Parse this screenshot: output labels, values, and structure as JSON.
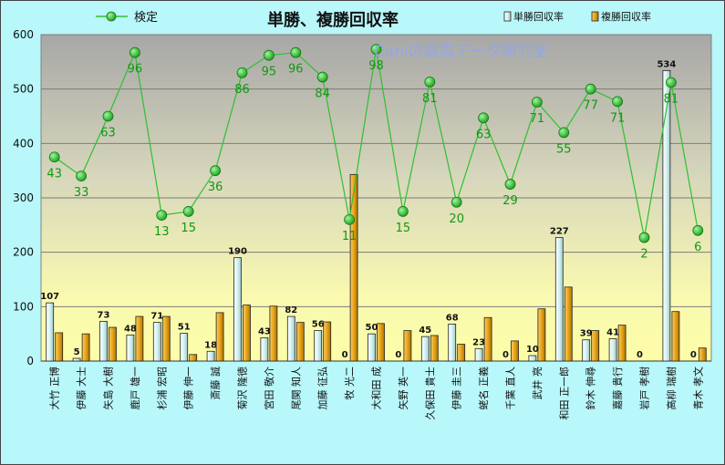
{
  "chart_data": {
    "type": "bar",
    "title": "単勝、複勝回収率",
    "watermark": "Caniの競馬データ研究室",
    "ylim": [
      0,
      600
    ],
    "yticks": [
      0,
      100,
      200,
      300,
      400,
      500,
      600
    ],
    "grid": true,
    "legend_position": "top",
    "categories": [
      "大竹 正博",
      "伊藤 大士",
      "矢島 大樹",
      "鹿戸 雄一",
      "杉浦 宏昭",
      "伊藤 伸一",
      "斎藤 誠",
      "菊沢 隆徳",
      "宮田 敬介",
      "尾関 知人",
      "加藤 征弘",
      "牧 光二",
      "大和田 成",
      "矢野 英一",
      "久保田 貴士",
      "伊藤 圭三",
      "蛯名 正義",
      "千葉 直人",
      "武井 亮",
      "和田 正一郎",
      "鈴木 伸尋",
      "嘉藤 貴行",
      "岩戸 孝樹",
      "高柳 瑞樹",
      "青木 孝文"
    ],
    "series": [
      {
        "name": "単勝回収率",
        "type": "bar",
        "color": "#d4f0f0",
        "values": [
          107,
          5,
          73,
          48,
          71,
          51,
          18,
          190,
          43,
          82,
          56,
          0,
          50,
          0,
          45,
          68,
          23,
          0,
          10,
          227,
          39,
          41,
          0,
          534,
          0
        ],
        "labels_shown": true
      },
      {
        "name": "複勝回収率",
        "type": "bar",
        "color": "#e8a317",
        "values": [
          52,
          50,
          62,
          82,
          82,
          12,
          89,
          103,
          101,
          71,
          72,
          343,
          69,
          56,
          47,
          31,
          80,
          37,
          96,
          136,
          56,
          66,
          0,
          91,
          24
        ]
      },
      {
        "name": "検定",
        "type": "line",
        "color": "#2fc02f",
        "values": [
          375,
          340,
          450,
          567,
          268,
          275,
          350,
          530,
          562,
          567,
          522,
          260,
          573,
          275,
          513,
          292,
          447,
          325,
          476,
          420,
          500,
          477,
          227,
          512,
          240
        ],
        "labels": [
          43,
          33,
          63,
          96,
          13,
          15,
          36,
          86,
          95,
          96,
          84,
          11,
          98,
          15,
          81,
          20,
          63,
          29,
          71,
          55,
          77,
          71,
          2,
          81,
          6
        ]
      }
    ]
  }
}
